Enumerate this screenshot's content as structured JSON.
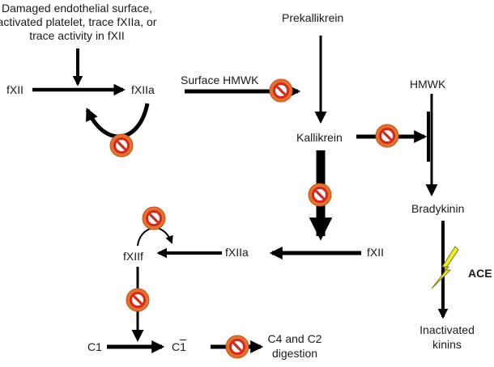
{
  "colors": {
    "arrow": "#000000",
    "inhibitor_fill": "#e8702a",
    "inhibitor_ring": "#d8281c",
    "bolt_fill": "#f2ec2c",
    "bolt_stroke": "#7a7a10"
  },
  "labels": {
    "trigger_line1": "Damaged endothelial surface,",
    "trigger_line2": "activated platelet, trace fXIIa, or",
    "trigger_line3": "trace activity in fXII",
    "fxii_top": "fXII",
    "fxiia_top": "fXIIa",
    "surface_hmwk": "Surface HMWK",
    "prekallikrein": "Prekallikrein",
    "kallikrein": "Kallikrein",
    "hmwk": "HMWK",
    "bradykinin": "Bradykinin",
    "ace": "ACE",
    "inactivated_line1": "Inactivated",
    "inactivated_line2": "kinins",
    "fxii_mid": "fXII",
    "fxiia_mid": "fXIIa",
    "fxiif": "fXIIf",
    "c1": "C1",
    "c1_bar_prefix": "C",
    "c1_bar_digit": "1",
    "c4c2_line1": "C4 and C2",
    "c4c2_line2": "digestion"
  },
  "icons": [
    "inhibitor-icon",
    "lightning-bolt-icon"
  ]
}
